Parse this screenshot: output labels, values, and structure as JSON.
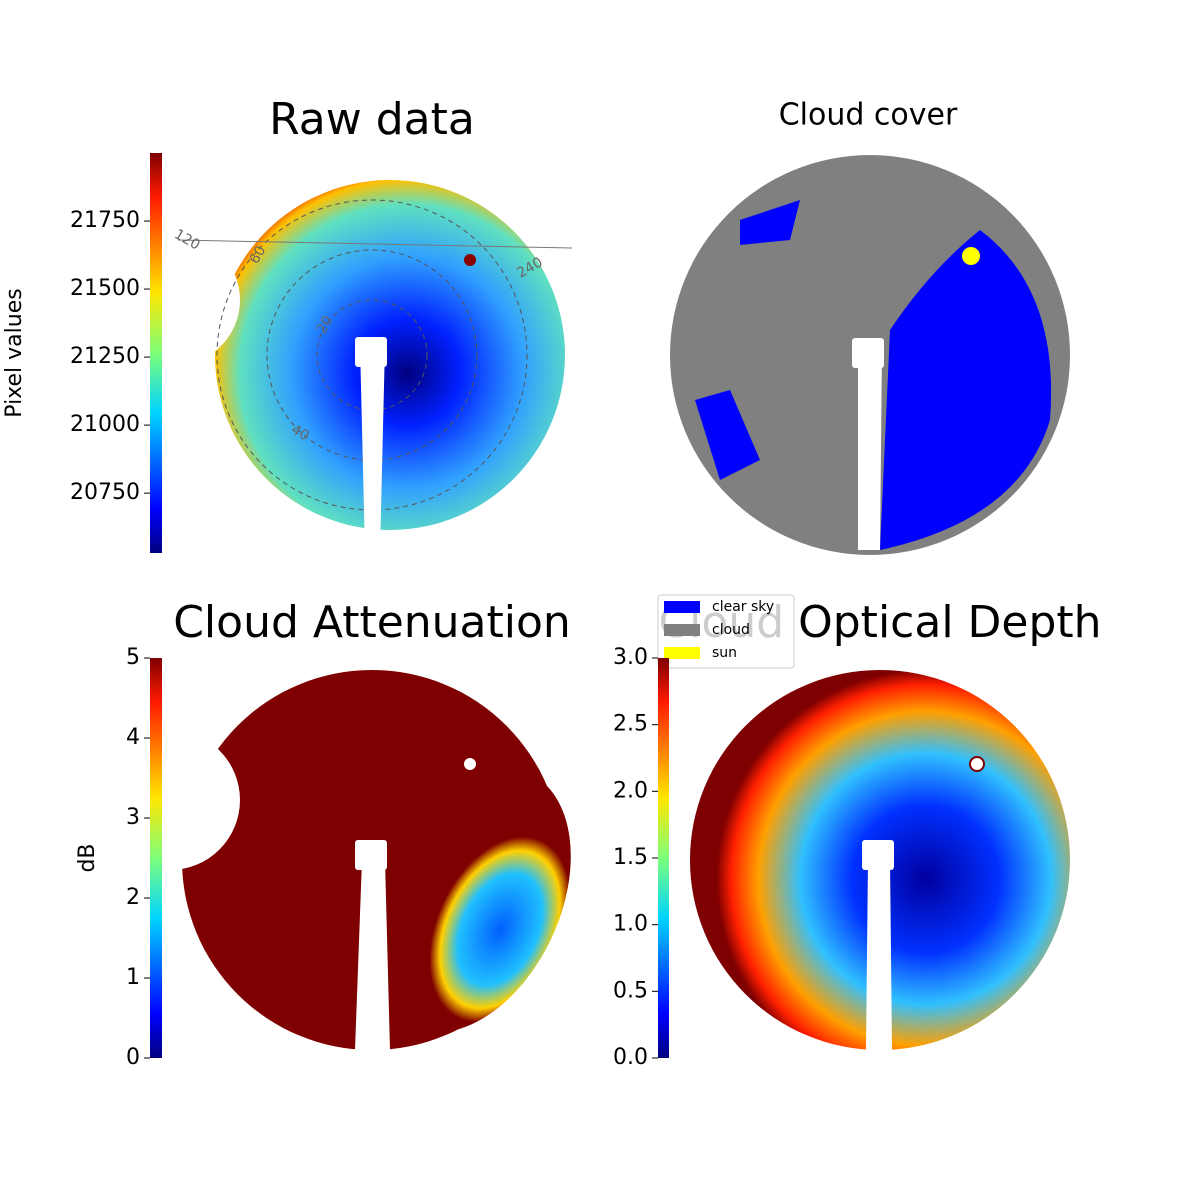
{
  "chart_data": [
    {
      "type": "image",
      "title": "Raw data",
      "colormap": "jet",
      "ylabel": "Pixel values",
      "ylim": [
        20530,
        22000
      ],
      "yticks": [
        20750,
        21000,
        21250,
        21500,
        21750
      ],
      "annotations": [
        "120",
        "60",
        "20",
        "40",
        "240"
      ]
    },
    {
      "type": "image",
      "title": "Cloud cover",
      "series": [
        {
          "name": "clear sky",
          "color": "#0000ff"
        },
        {
          "name": "cloud",
          "color": "#808080"
        },
        {
          "name": "sun",
          "color": "#ffff00"
        }
      ]
    },
    {
      "type": "image",
      "title": "Cloud Attenuation",
      "colormap": "jet",
      "ylabel": "dB",
      "ylim": [
        0,
        5
      ],
      "yticks": [
        0,
        1,
        2,
        3,
        4,
        5
      ]
    },
    {
      "type": "image",
      "title": "Cloud Optical Depth",
      "colormap": "jet",
      "ylim": [
        0,
        3
      ],
      "yticks": [
        {
          "value": 0,
          "label": "0.0"
        },
        0.5,
        {
          "value": 1,
          "label": "1.0"
        },
        1.5,
        {
          "value": 2,
          "label": "2.0"
        },
        2.5,
        {
          "value": 3,
          "label": "3.0"
        }
      ]
    }
  ]
}
